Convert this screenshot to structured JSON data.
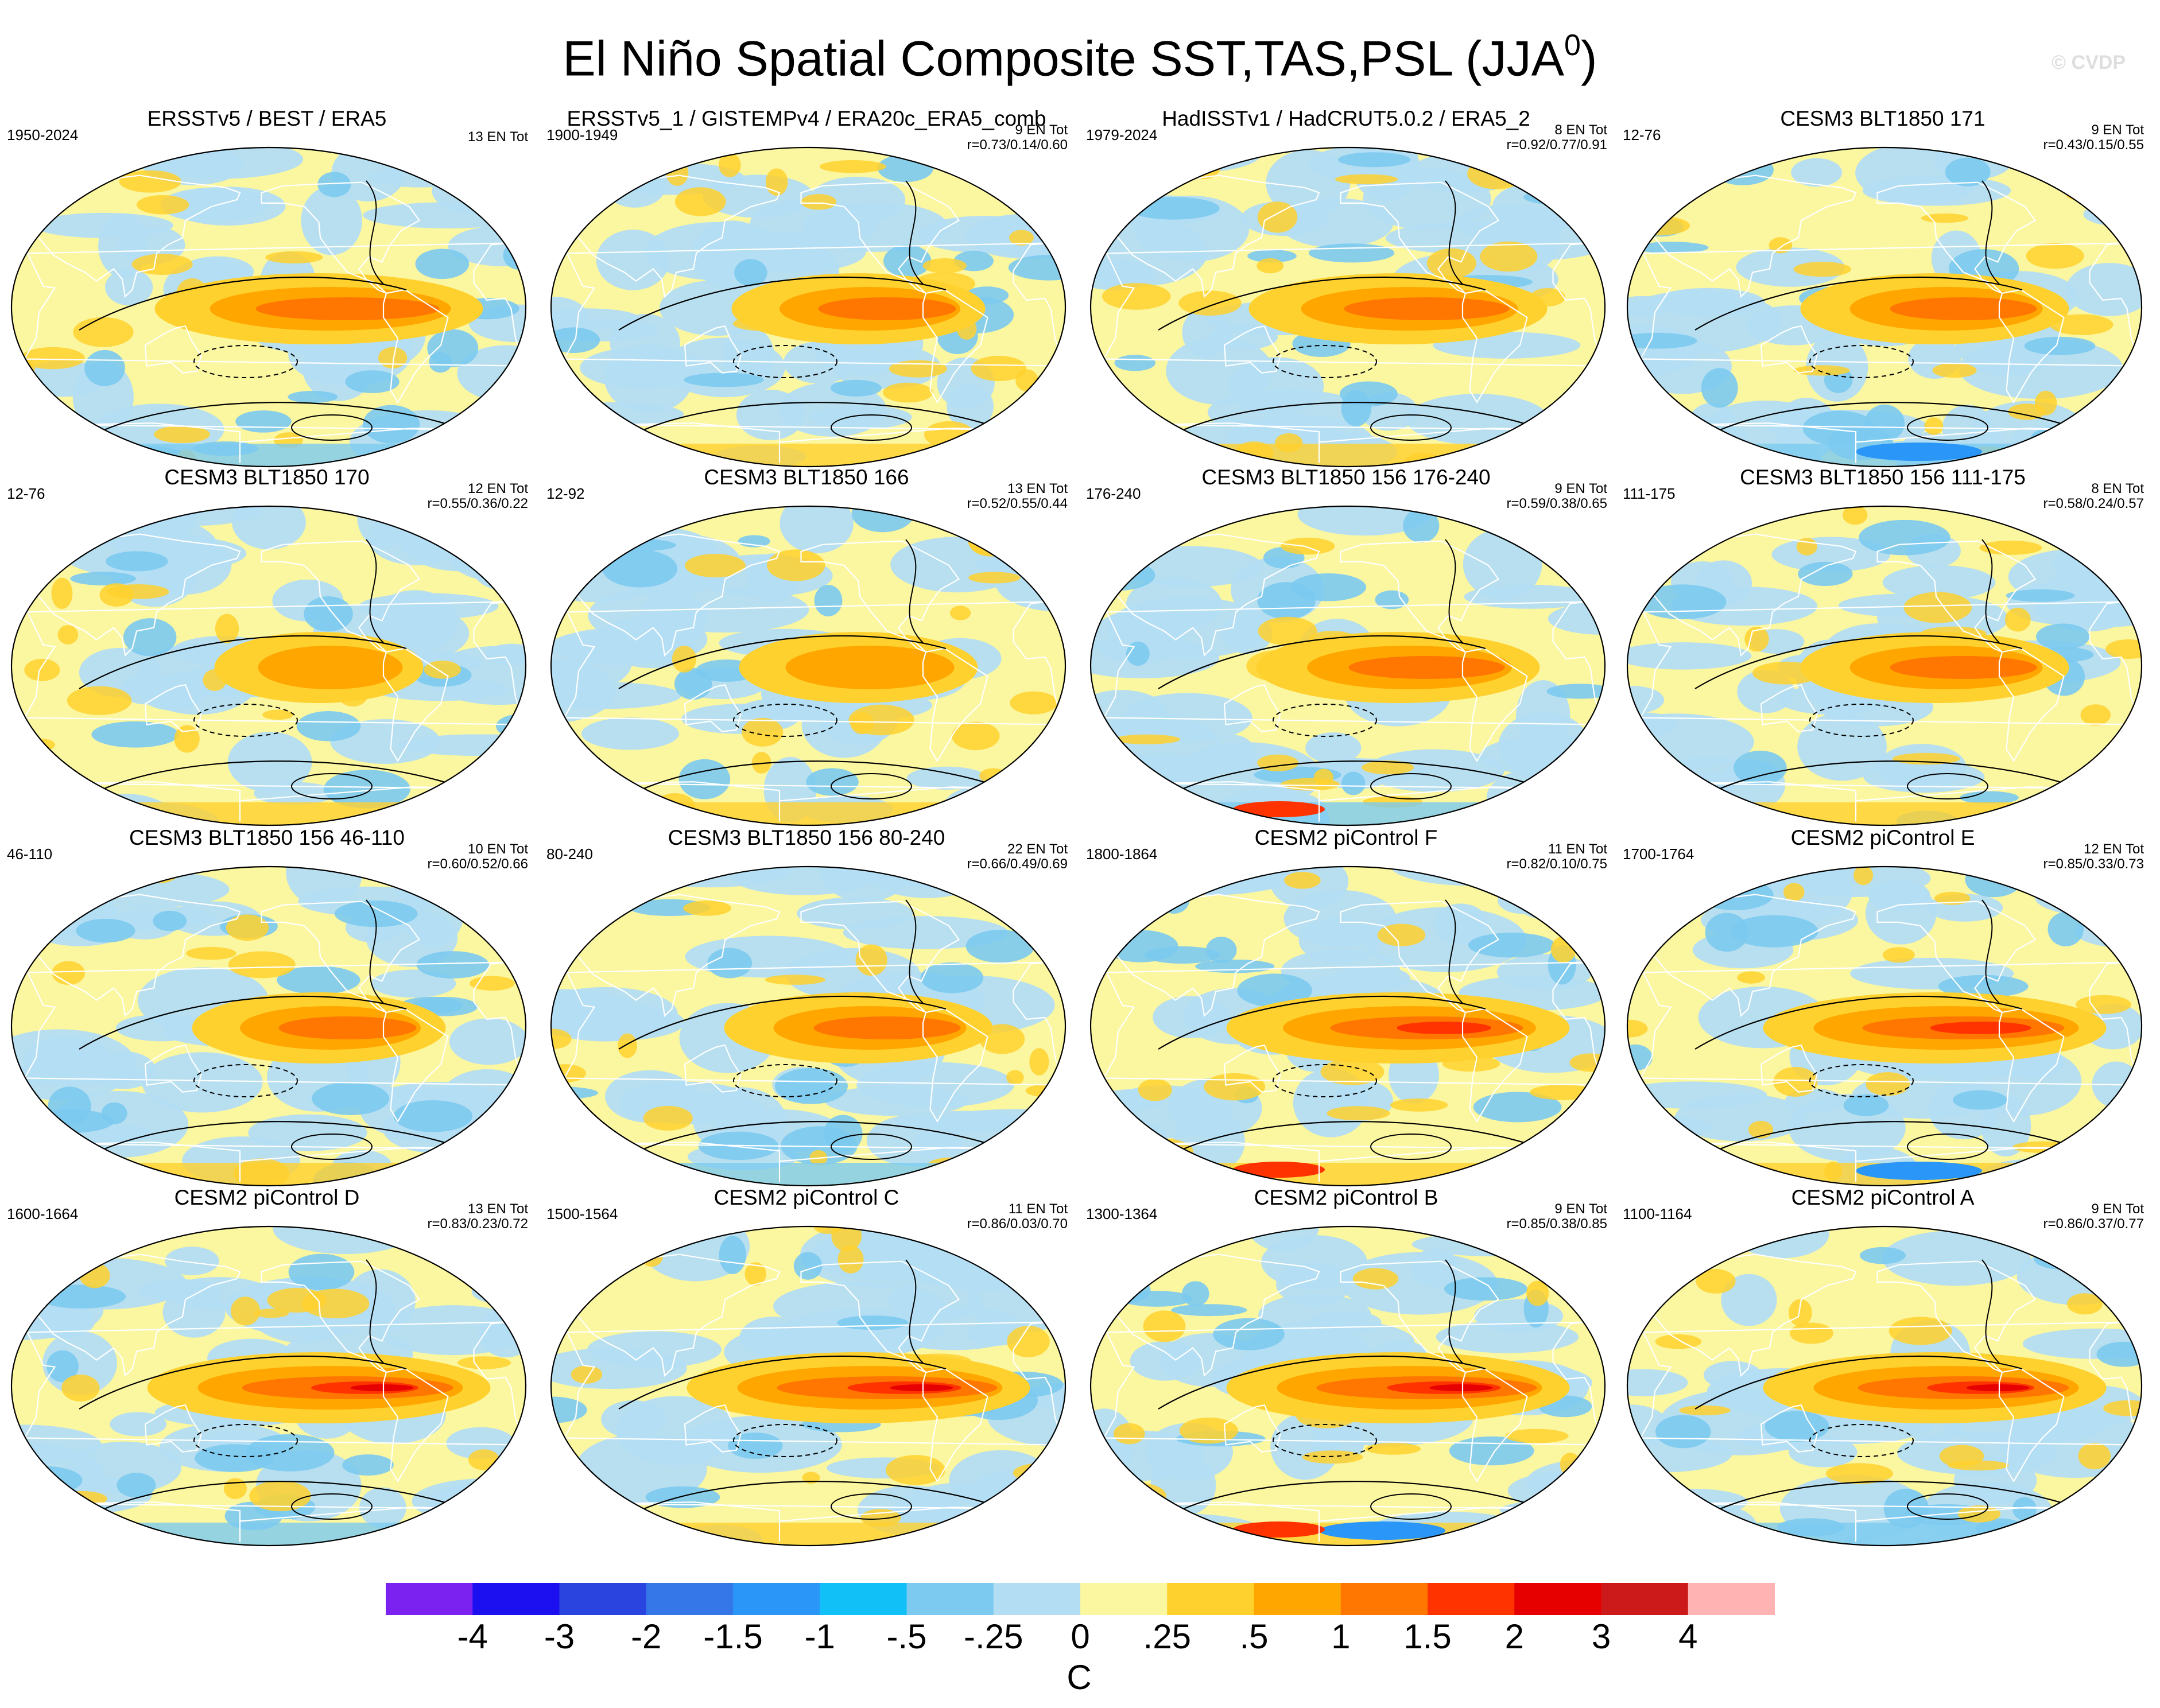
{
  "title": {
    "main": "El Niño Spatial Composite SST,TAS,PSL (JJA",
    "superscript": "0",
    "close": ")"
  },
  "watermark": "© CVDP",
  "colors": {
    "background": "#ffffff",
    "land_outline": "#ffffff",
    "psl_contour": "#000000"
  },
  "chart_data": {
    "type": "heatmap",
    "projection": "Hammer/Robinson-like global map, centered on the Pacific",
    "fields": [
      "SST (shaded)",
      "TAS (shaded over land)",
      "PSL (contours; solid positive, dashed negative)"
    ],
    "colorbar": {
      "units": "C",
      "tick_labels": [
        "-4",
        "-3",
        "-2",
        "-1.5",
        "-1",
        "-.5",
        "-.25",
        "0",
        ".25",
        ".5",
        "1",
        "1.5",
        "2",
        "3",
        "4"
      ],
      "levels": [
        -4,
        -3,
        -2,
        -1.5,
        -1,
        -0.5,
        -0.25,
        0,
        0.25,
        0.5,
        1,
        1.5,
        2,
        3,
        4
      ],
      "colors": [
        "#7b22f0",
        "#1c10f0",
        "#2a44e0",
        "#3576e8",
        "#2a96f8",
        "#12c0f8",
        "#7ccaf0",
        "#b3ddf3",
        "#fbf6a0",
        "#ffd12e",
        "#ffa600",
        "#ff7700",
        "#ff3300",
        "#e60000",
        "#cc1a1a",
        "#ffb3b3"
      ]
    },
    "panels": [
      {
        "title": "ERSSTv5 / BEST / ERA5",
        "period": "1950-2024",
        "count": "13 EN Tot",
        "corr": "",
        "intensity": 1.0
      },
      {
        "title": "ERSSTv5_1 / GISTEMPv4 / ERA20c_ERA5_comb",
        "period": "1900-1949",
        "count": "9 EN Tot",
        "corr": "r=0.73/0.14/0.60",
        "intensity": 0.75
      },
      {
        "title": "HadISSTv1 / HadCRUT5.0.2 / ERA5_2",
        "period": "1979-2024",
        "count": "8 EN Tot",
        "corr": "r=0.92/0.77/0.91",
        "intensity": 0.9
      },
      {
        "title": "CESM3 BLT1850 171",
        "period": "12-76",
        "count": "9 EN Tot",
        "corr": "r=0.43/0.15/0.55",
        "intensity": 0.8
      },
      {
        "title": "CESM3 BLT1850 170",
        "period": "12-76",
        "count": "12 EN Tot",
        "corr": "r=0.55/0.36/0.22",
        "intensity": 0.6
      },
      {
        "title": "CESM3 BLT1850 166",
        "period": "12-92",
        "count": "13 EN Tot",
        "corr": "r=0.52/0.55/0.44",
        "intensity": 0.7
      },
      {
        "title": "CESM3 BLT1850 156 176-240",
        "period": "176-240",
        "count": "9 EN Tot",
        "corr": "r=0.59/0.38/0.65",
        "intensity": 0.85
      },
      {
        "title": "CESM3 BLT1850 156 111-175",
        "period": "111-175",
        "count": "8 EN Tot",
        "corr": "r=0.58/0.24/0.57",
        "intensity": 0.8
      },
      {
        "title": "CESM3 BLT1850 156 46-110",
        "period": "46-110",
        "count": "10 EN Tot",
        "corr": "r=0.60/0.52/0.66",
        "intensity": 0.75
      },
      {
        "title": "CESM3 BLT1850 156 80-240",
        "period": "80-240",
        "count": "22 EN Tot",
        "corr": "r=0.66/0.49/0.69",
        "intensity": 0.8
      },
      {
        "title": "CESM2 piControl F",
        "period": "1800-1864",
        "count": "11 EN Tot",
        "corr": "r=0.82/0.10/0.75",
        "intensity": 1.05
      },
      {
        "title": "CESM2 piControl E",
        "period": "1700-1764",
        "count": "12 EN Tot",
        "corr": "r=0.85/0.33/0.73",
        "intensity": 1.1
      },
      {
        "title": "CESM2 piControl D",
        "period": "1600-1664",
        "count": "13 EN Tot",
        "corr": "r=0.83/0.23/0.72",
        "intensity": 1.15
      },
      {
        "title": "CESM2 piControl C",
        "period": "1500-1564",
        "count": "11 EN Tot",
        "corr": "r=0.86/0.03/0.70",
        "intensity": 1.2
      },
      {
        "title": "CESM2 piControl B",
        "period": "1300-1364",
        "count": "9 EN Tot",
        "corr": "r=0.85/0.38/0.85",
        "intensity": 1.2
      },
      {
        "title": "CESM2 piControl A",
        "period": "1100-1164",
        "count": "9 EN Tot",
        "corr": "r=0.86/0.37/0.77",
        "intensity": 1.15
      }
    ]
  }
}
